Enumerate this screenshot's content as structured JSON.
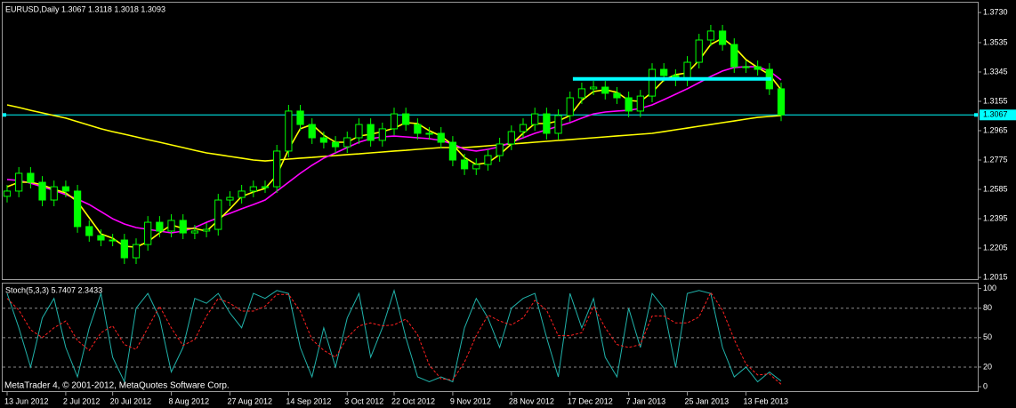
{
  "chart_data": [
    {
      "type": "candlestick",
      "title": "EURUSD,Daily  1.3067 1.3118 1.3018 1.3093",
      "color": "#00ff00",
      "categories": [
        "13 Jun 2012",
        null,
        null,
        null,
        null,
        "2 Jul 2012",
        null,
        null,
        null,
        "20 Jul 2012",
        null,
        null,
        null,
        null,
        "8 Aug 2012",
        null,
        null,
        null,
        null,
        "27 Aug 2012",
        null,
        null,
        null,
        null,
        "14 Sep 2012",
        null,
        null,
        null,
        null,
        "3 Oct 2012",
        null,
        null,
        null,
        "22 Oct 2012",
        null,
        null,
        null,
        null,
        "9 Nov 2012",
        null,
        null,
        null,
        null,
        "28 Nov 2012",
        null,
        null,
        null,
        null,
        "17 Dec 2012",
        null,
        null,
        null,
        null,
        "7 Jan 2013",
        null,
        null,
        null,
        null,
        "25 Jan 2013",
        null,
        null,
        null,
        null,
        "13 Feb 2013",
        null,
        null,
        null
      ],
      "open": [
        1.254,
        1.2574,
        1.2689,
        1.2631,
        1.2516,
        1.2602,
        1.2574,
        1.2344,
        1.2286,
        1.2257,
        1.2257,
        1.2142,
        1.2228,
        1.2372,
        1.2315,
        1.2384,
        1.2303,
        1.2315,
        1.2326,
        1.2516,
        1.2533,
        1.2574,
        1.2602,
        1.2602,
        1.2833,
        1.3092,
        1.3005,
        1.2919,
        1.289,
        1.2861,
        1.2919,
        1.3005,
        1.2902,
        1.2977,
        1.3074,
        1.3005,
        1.2948,
        1.2948,
        1.289,
        1.2775,
        1.2718,
        1.2746,
        1.2804,
        1.2879,
        1.2959,
        1.3005,
        1.3074,
        1.2948,
        1.3063,
        1.3178,
        1.3236,
        1.3247,
        1.3207,
        1.3178,
        1.3092,
        1.3189,
        1.3362,
        1.3322,
        1.3293,
        1.3408,
        1.3552,
        1.361,
        1.3523,
        1.3379,
        1.3379,
        1.3362,
        1.3236
      ],
      "high": [
        1.2614,
        1.2729,
        1.2729,
        1.2671,
        1.2642,
        1.2642,
        1.2614,
        1.2384,
        1.2326,
        1.2297,
        1.2297,
        1.2268,
        1.2412,
        1.2412,
        1.2424,
        1.2424,
        1.2355,
        1.2366,
        1.2556,
        1.2573,
        1.2614,
        1.2642,
        1.2642,
        1.2873,
        1.3132,
        1.3132,
        1.3045,
        1.2959,
        1.293,
        1.2959,
        1.3045,
        1.3045,
        1.3017,
        1.3114,
        1.3114,
        1.3045,
        1.2988,
        1.2988,
        1.293,
        1.2815,
        1.2786,
        1.2844,
        1.2919,
        1.2999,
        1.3045,
        1.3114,
        1.3114,
        1.3103,
        1.3218,
        1.3276,
        1.3287,
        1.3287,
        1.3247,
        1.3218,
        1.3229,
        1.3402,
        1.3402,
        1.3362,
        1.3448,
        1.3592,
        1.365,
        1.365,
        1.3563,
        1.3419,
        1.3419,
        1.3402,
        1.3276
      ],
      "low": [
        1.25,
        1.2534,
        1.2591,
        1.2476,
        1.2476,
        1.2534,
        1.2304,
        1.2246,
        1.2217,
        1.2217,
        1.2102,
        1.2102,
        1.2188,
        1.2275,
        1.2275,
        1.2263,
        1.2263,
        1.2275,
        1.2286,
        1.2476,
        1.2493,
        1.2534,
        1.2562,
        1.2562,
        1.2793,
        1.2965,
        1.2879,
        1.285,
        1.2821,
        1.2821,
        1.2879,
        1.2862,
        1.2862,
        1.2937,
        1.2965,
        1.2908,
        1.2908,
        1.285,
        1.2735,
        1.2678,
        1.2678,
        1.2706,
        1.2764,
        1.2839,
        1.2919,
        1.2965,
        1.2908,
        1.2908,
        1.3023,
        1.3138,
        1.3196,
        1.3167,
        1.3138,
        1.3052,
        1.3052,
        1.3149,
        1.3282,
        1.3253,
        1.3253,
        1.3368,
        1.3512,
        1.3483,
        1.3339,
        1.3339,
        1.3322,
        1.3196,
        1.3027
      ],
      "close": [
        1.2574,
        1.2689,
        1.2631,
        1.2516,
        1.2602,
        1.2574,
        1.2344,
        1.2286,
        1.2257,
        1.2257,
        1.2142,
        1.2228,
        1.2372,
        1.2315,
        1.2384,
        1.2303,
        1.2315,
        1.2326,
        1.2516,
        1.2533,
        1.2574,
        1.2602,
        1.2602,
        1.2833,
        1.3092,
        1.3005,
        1.2919,
        1.289,
        1.2861,
        1.2919,
        1.3005,
        1.2902,
        1.2977,
        1.3074,
        1.3005,
        1.2948,
        1.2948,
        1.289,
        1.2775,
        1.2718,
        1.2746,
        1.2804,
        1.2879,
        1.2959,
        1.3005,
        1.3074,
        1.2948,
        1.3063,
        1.3178,
        1.3236,
        1.3247,
        1.3207,
        1.3178,
        1.3092,
        1.3189,
        1.3362,
        1.3322,
        1.3293,
        1.3408,
        1.3552,
        1.361,
        1.3523,
        1.3379,
        1.3379,
        1.3362,
        1.3236,
        1.3067
      ],
      "overlays": [
        {
          "color": "#ffff00",
          "values": [
            1.3132,
            1.3115,
            1.3097,
            1.308,
            1.3063,
            1.3046,
            1.3023,
            1.3,
            1.2977,
            1.2959,
            1.2942,
            1.2925,
            1.2907,
            1.289,
            1.2873,
            1.2856,
            1.2838,
            1.2821,
            1.281,
            1.2798,
            1.2787,
            1.2775,
            1.2769,
            1.2775,
            1.2781,
            1.2787,
            1.2792,
            1.2798,
            1.2804,
            1.281,
            1.2815,
            1.2821,
            1.2827,
            1.2833,
            1.2838,
            1.2844,
            1.285,
            1.2856,
            1.2856,
            1.2856,
            1.2861,
            1.2867,
            1.2873,
            1.2879,
            1.2884,
            1.289,
            1.2896,
            1.2902,
            1.2907,
            1.2913,
            1.2919,
            1.2925,
            1.2931,
            1.2936,
            1.2942,
            1.2948,
            1.2959,
            1.2971,
            1.2982,
            1.2994,
            1.3005,
            1.3017,
            1.3028,
            1.304,
            1.3051,
            1.3057,
            1.3063
          ]
        },
        {
          "color": "#ff00ff",
          "values": [
            1.2649,
            1.2643,
            1.2625,
            1.2602,
            1.2579,
            1.2551,
            1.2522,
            1.2487,
            1.2441,
            1.2395,
            1.2361,
            1.2338,
            1.2326,
            1.2315,
            1.2303,
            1.2315,
            1.2338,
            1.2372,
            1.2401,
            1.243,
            1.2459,
            1.2487,
            1.2516,
            1.2574,
            1.2631,
            1.2689,
            1.2741,
            1.2787,
            1.2821,
            1.2856,
            1.289,
            1.2913,
            1.2925,
            1.293,
            1.2925,
            1.2919,
            1.2913,
            1.2902,
            1.2879,
            1.2844,
            1.2833,
            1.2844,
            1.2861,
            1.289,
            1.2919,
            1.2948,
            1.2971,
            1.2994,
            1.3017,
            1.3046,
            1.3074,
            1.3086,
            1.3092,
            1.3097,
            1.3109,
            1.3132,
            1.3166,
            1.3201,
            1.3236,
            1.3276,
            1.3316,
            1.3351,
            1.3374,
            1.3379,
            1.3379,
            1.3351,
            1.3293
          ]
        },
        {
          "color": "#ffff00",
          "values": [
            1.2602,
            1.2631,
            1.2631,
            1.2614,
            1.2585,
            1.2562,
            1.2505,
            1.2401,
            1.2297,
            1.2269,
            1.2217,
            1.2211,
            1.2246,
            1.2303,
            1.2355,
            1.2332,
            1.2332,
            1.2315,
            1.2384,
            1.2459,
            1.2539,
            1.2568,
            1.2591,
            1.2677,
            1.2844,
            1.2977,
            1.3005,
            1.2936,
            1.289,
            1.289,
            1.293,
            1.2942,
            1.2959,
            1.2982,
            1.3017,
            1.3011,
            1.2965,
            1.293,
            1.2873,
            1.2792,
            1.2746,
            1.2758,
            1.281,
            1.2879,
            1.2948,
            1.3011,
            1.3011,
            1.3028,
            1.3063,
            1.3161,
            1.3218,
            1.323,
            1.3213,
            1.3161,
            1.3155,
            1.3213,
            1.3293,
            1.3328,
            1.3339,
            1.342,
            1.3523,
            1.3564,
            1.3506,
            1.3425,
            1.3374,
            1.3328,
            1.323
          ]
        }
      ],
      "resistance_line": {
        "value": 1.33,
        "color": "#00ffff"
      },
      "price_line": {
        "value": 1.3067,
        "label": "1.3067",
        "color": "#00ffff"
      },
      "ylim": [
        1.2004,
        1.3788
      ],
      "yticks": [
        {
          "value": 1.373,
          "label": "1.3730"
        },
        {
          "value": 1.3535,
          "label": "1.3535"
        },
        {
          "value": 1.3345,
          "label": "1.3345"
        },
        {
          "value": 1.3155,
          "label": "1.3155"
        },
        {
          "value": 1.2965,
          "label": "1.2965"
        },
        {
          "value": 1.2775,
          "label": "1.2775"
        },
        {
          "value": 1.2585,
          "label": "1.2585"
        },
        {
          "value": 1.2395,
          "label": "1.2395"
        },
        {
          "value": 1.2205,
          "label": "1.2205"
        },
        {
          "value": 1.2015,
          "label": "1.2015"
        }
      ]
    },
    {
      "type": "line",
      "title": "Stoch(5,3,3) 5.7407 2.3433",
      "series": [
        {
          "color": "#20b2aa",
          "style": "solid",
          "values": [
            95,
            60,
            20,
            70,
            90,
            40,
            10,
            60,
            95,
            30,
            5,
            80,
            95,
            70,
            15,
            40,
            90,
            85,
            95,
            75,
            60,
            95,
            90,
            98,
            95,
            40,
            10,
            60,
            20,
            70,
            95,
            30,
            60,
            98,
            50,
            10,
            5,
            10,
            5,
            60,
            90,
            70,
            40,
            80,
            90,
            95,
            50,
            10,
            95,
            60,
            90,
            30,
            10,
            80,
            40,
            95,
            80,
            20,
            95,
            98,
            95,
            40,
            10,
            20,
            5,
            15,
            5.7407
          ]
        },
        {
          "color": "#ff2020",
          "style": "dashed",
          "values": [
            90,
            78,
            58,
            50,
            60,
            67,
            47,
            37,
            55,
            62,
            43,
            38,
            60,
            82,
            60,
            42,
            48,
            72,
            90,
            85,
            77,
            77,
            82,
            94,
            94,
            77,
            48,
            37,
            30,
            50,
            62,
            65,
            62,
            63,
            69,
            53,
            22,
            8,
            7,
            25,
            52,
            73,
            67,
            63,
            70,
            88,
            78,
            52,
            52,
            55,
            82,
            60,
            43,
            40,
            43,
            72,
            72,
            65,
            65,
            71,
            96,
            78,
            48,
            23,
            12,
            13,
            2.3433
          ]
        }
      ],
      "levels": [
        80,
        50,
        20
      ],
      "ylim": [
        -4.5,
        106
      ],
      "yticks": [
        100,
        80,
        50,
        20,
        0
      ]
    }
  ],
  "footer": "MetaTrader 4, © 2001-2012, MetaQuotes Software Corp."
}
